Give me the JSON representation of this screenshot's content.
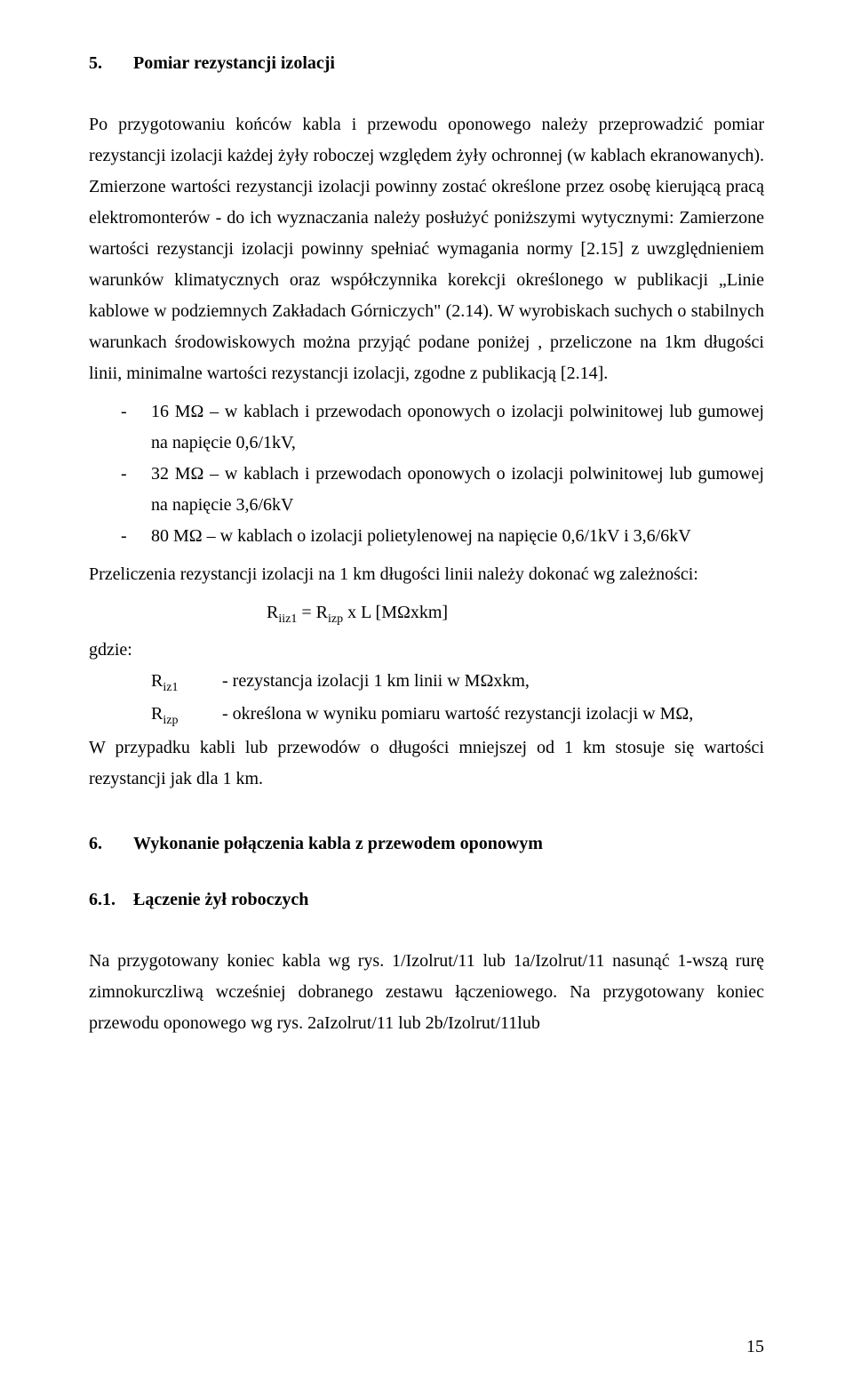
{
  "section5": {
    "number": "5.",
    "title": "Pomiar rezystancji izolacji",
    "para1": "Po przygotowaniu końców kabla i przewodu oponowego należy przeprowadzić pomiar rezystancji izolacji każdej żyły roboczej względem żyły ochronnej (w kablach ekranowanych). Zmierzone wartości rezystancji izolacji powinny zostać określone przez osobę kierującą pracą elektromonterów - do ich wyznaczania należy posłużyć poniższymi wytycznymi: Zamierzone wartości rezystancji izolacji powinny spełniać wymagania normy [2.15] z uwzględnieniem warunków klimatycznych oraz współczynnika korekcji określonego w publikacji „Linie kablowe w podziemnych Zakładach Górniczych\" (2.14). W wyrobiskach suchych o stabilnych warunkach środowiskowych można przyjąć podane poniżej , przeliczone na 1km długości linii, minimalne wartości rezystancji izolacji, zgodne z publikacją [2.14].",
    "bullets": [
      "16 MΩ – w kablach i przewodach oponowych o izolacji polwinitowej lub gumowej na napięcie 0,6/1kV,",
      "32 MΩ – w kablach i przewodach oponowych o izolacji polwinitowej lub gumowej na napięcie 3,6/6kV",
      "80 MΩ – w kablach o izolacji polietylenowej na napięcie 0,6/1kV i 3,6/6kV"
    ],
    "para2": "Przeliczenia rezystancji izolacji na 1 km długości linii należy dokonać wg zależności:",
    "formula_lhs": "R",
    "formula_sub1": "iiz1",
    "formula_eq": " = R",
    "formula_sub2": "izp",
    "formula_rhs": " x L    [MΩxkm]",
    "where": "gdzie:",
    "def1_sym": "R",
    "def1_sub": "iz1",
    "def1_text": "- rezystancja izolacji 1 km linii w MΩxkm,",
    "def2_sym": "R",
    "def2_sub": "izp",
    "def2_text": "- określona w wyniku pomiaru wartość rezystancji izolacji w MΩ,",
    "para3": "W przypadku kabli lub przewodów o długości mniejszej od 1 km stosuje się wartości rezystancji jak dla 1 km."
  },
  "section6": {
    "number": "6.",
    "title": "Wykonanie połączenia kabla z przewodem oponowym"
  },
  "section61": {
    "number": "6.1.",
    "title": "Łączenie żył roboczych",
    "para1": "Na przygotowany koniec kabla wg rys. 1/Izolrut/11 lub 1a/Izolrut/11 nasunąć 1-wszą rurę zimnokurczliwą wcześniej dobranego zestawu łączeniowego. Na przygotowany koniec przewodu oponowego wg rys. 2aIzolrut/11 lub 2b/Izolrut/11lub"
  },
  "pageNumber": "15"
}
